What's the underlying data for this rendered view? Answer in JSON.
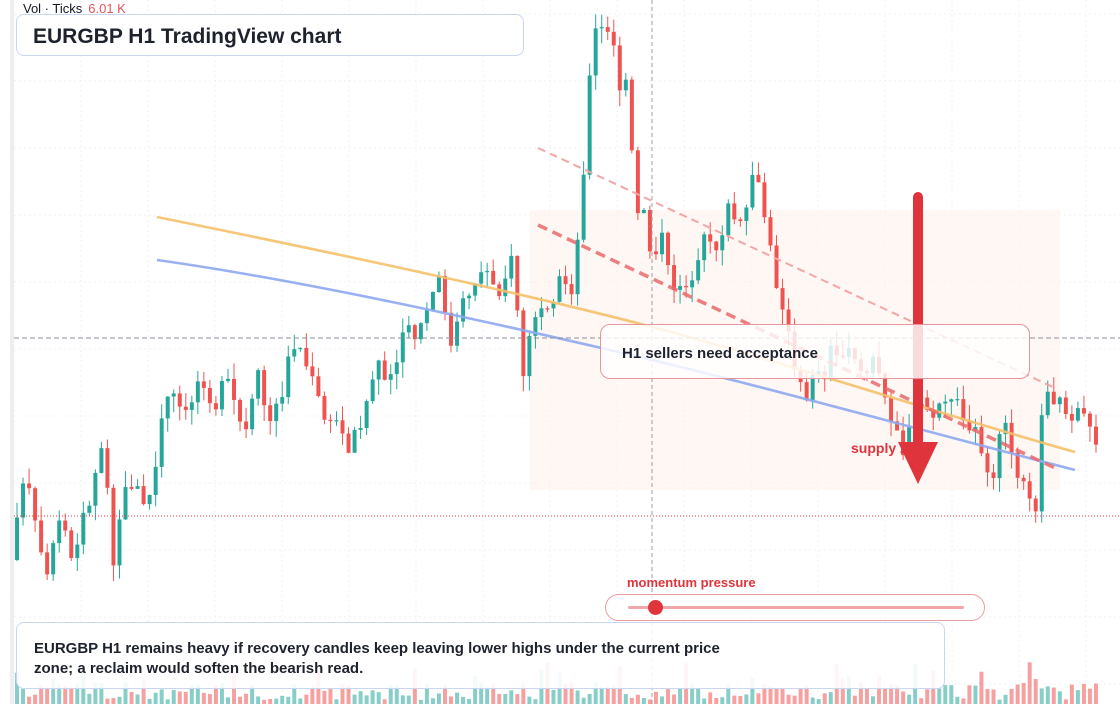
{
  "header": {
    "vol_label": "Vol · Ticks",
    "vol_value": "6.01 K",
    "title": "EURGBP H1 TradingView chart"
  },
  "annotations": {
    "callout": "H1 sellers need acceptance",
    "supply_label": "supply zone",
    "momentum_label": "momentum pressure",
    "momentum_level": 0.08,
    "note": "EURGBP H1 remains heavy if recovery candles keep leaving lower highs under the current price zone; a reclaim would soften the bearish read."
  },
  "colors": {
    "up": "#26a69a",
    "down": "#ef5350",
    "ma_slow": "#8fa8f0",
    "ma_fast": "#f5c06a",
    "accent": "#e0343c"
  },
  "chart_data": {
    "type": "candlestick",
    "symbol": "EURGBP",
    "timeframe": "H1",
    "candle_count": 180,
    "y_top": 14,
    "y_bottom": 636,
    "anchors": [
      [
        0,
        560
      ],
      [
        5,
        490
      ],
      [
        10,
        490
      ],
      [
        16,
        540
      ],
      [
        20,
        590
      ],
      [
        26,
        540
      ],
      [
        30,
        510
      ],
      [
        34,
        560
      ],
      [
        38,
        560
      ],
      [
        43,
        500
      ],
      [
        46,
        510
      ],
      [
        52,
        440
      ],
      [
        56,
        470
      ],
      [
        60,
        560
      ],
      [
        65,
        500
      ],
      [
        72,
        480
      ],
      [
        78,
        510
      ],
      [
        84,
        480
      ],
      [
        90,
        400
      ],
      [
        96,
        400
      ],
      [
        102,
        420
      ],
      [
        110,
        380
      ],
      [
        114,
        380
      ],
      [
        119,
        410
      ],
      [
        126,
        380
      ],
      [
        130,
        400
      ],
      [
        137,
        440
      ],
      [
        142,
        400
      ],
      [
        146,
        370
      ],
      [
        150,
        430
      ],
      [
        158,
        400
      ],
      [
        164,
        350
      ],
      [
        167,
        340
      ],
      [
        172,
        360
      ],
      [
        176,
        380
      ],
      [
        180,
        400
      ],
      [
        184,
        420
      ],
      [
        188,
        430
      ],
      [
        191,
        420
      ],
      [
        197,
        450
      ],
      [
        203,
        430
      ],
      [
        209,
        400
      ],
      [
        215,
        360
      ],
      [
        222,
        380
      ],
      [
        230,
        330
      ],
      [
        238,
        340
      ],
      [
        246,
        300
      ],
      [
        252,
        280
      ],
      [
        258,
        350
      ],
      [
        264,
        310
      ],
      [
        272,
        280
      ],
      [
        278,
        270
      ],
      [
        286,
        290
      ],
      [
        294,
        260
      ],
      [
        298,
        330
      ],
      [
        300,
        380
      ],
      [
        305,
        330
      ],
      [
        310,
        300
      ],
      [
        316,
        300
      ],
      [
        322,
        280
      ],
      [
        330,
        290
      ],
      [
        336,
        160
      ],
      [
        340,
        60
      ],
      [
        344,
        20
      ],
      [
        348,
        40
      ],
      [
        352,
        30
      ],
      [
        356,
        90
      ],
      [
        360,
        80
      ],
      [
        368,
        230
      ],
      [
        372,
        200
      ],
      [
        376,
        280
      ],
      [
        380,
        220
      ],
      [
        384,
        270
      ],
      [
        390,
        290
      ],
      [
        395,
        280
      ],
      [
        400,
        290
      ],
      [
        408,
        230
      ],
      [
        414,
        250
      ],
      [
        420,
        210
      ],
      [
        428,
        230
      ],
      [
        434,
        170
      ],
      [
        440,
        200
      ],
      [
        444,
        240
      ],
      [
        448,
        280
      ],
      [
        452,
        300
      ],
      [
        456,
        340
      ],
      [
        460,
        380
      ],
      [
        466,
        400
      ],
      [
        470,
        370
      ],
      [
        476,
        380
      ],
      [
        480,
        350
      ],
      [
        486,
        360
      ],
      [
        490,
        340
      ],
      [
        496,
        360
      ],
      [
        500,
        380
      ],
      [
        506,
        360
      ],
      [
        510,
        390
      ],
      [
        520,
        430
      ],
      [
        524,
        460
      ],
      [
        530,
        400
      ],
      [
        536,
        400
      ],
      [
        540,
        430
      ],
      [
        546,
        390
      ],
      [
        550,
        410
      ],
      [
        556,
        400
      ],
      [
        560,
        440
      ],
      [
        566,
        420
      ],
      [
        570,
        460
      ],
      [
        576,
        470
      ],
      [
        580,
        420
      ],
      [
        586,
        440
      ],
      [
        590,
        470
      ],
      [
        596,
        480
      ],
      [
        600,
        520
      ],
      [
        606,
        380
      ],
      [
        612,
        400
      ],
      [
        620,
        410
      ],
      [
        628,
        420
      ],
      [
        636,
        440
      ]
    ],
    "series": [
      {
        "name": "",
        "color": "#8fa8f0"
      },
      {
        "name": "",
        "color": "#f5c06a"
      }
    ]
  }
}
